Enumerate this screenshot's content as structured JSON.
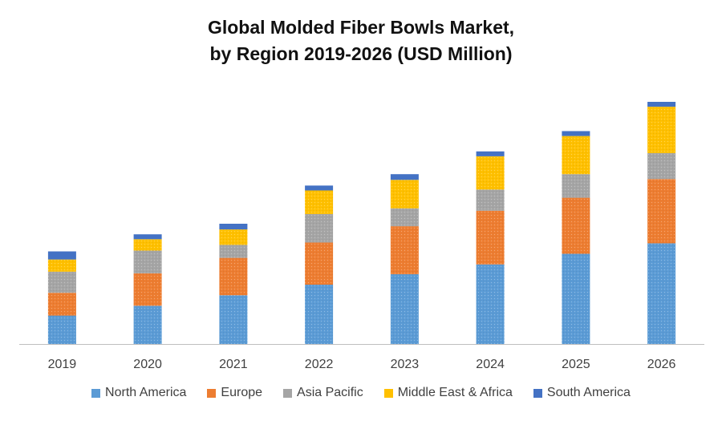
{
  "chart_data": {
    "type": "bar",
    "stacked": true,
    "title": "Global Molded Fiber Bowls Market,",
    "subtitle": "by Region 2019-2026 (USD Million)",
    "categories": [
      "2019",
      "2020",
      "2021",
      "2022",
      "2023",
      "2024",
      "2025",
      "2026"
    ],
    "series": [
      {
        "name": "North America",
        "color": "#5b9bd5",
        "pattern": "dotted",
        "values": [
          35,
          47,
          60,
          73,
          86,
          98,
          111,
          124
        ]
      },
      {
        "name": "Europe",
        "color": "#ed7d31",
        "pattern": "dotted",
        "values": [
          28,
          40,
          46,
          52,
          59,
          66,
          69,
          79
        ]
      },
      {
        "name": "Asia Pacific",
        "color": "#a5a5a5",
        "pattern": "dotted",
        "values": [
          26,
          28,
          16,
          35,
          22,
          26,
          29,
          32
        ]
      },
      {
        "name": "Middle East & Africa",
        "color": "#ffc000",
        "pattern": "dotted",
        "values": [
          15,
          14,
          19,
          29,
          35,
          41,
          47,
          57
        ]
      },
      {
        "name": "South America",
        "color": "#4472c4",
        "pattern": "solid",
        "values": [
          10,
          6,
          7,
          6,
          7,
          6,
          6,
          6
        ]
      }
    ],
    "ylim": [
      0,
      300
    ],
    "yaxis_visible": false,
    "grid": false,
    "legend_position": "bottom"
  }
}
